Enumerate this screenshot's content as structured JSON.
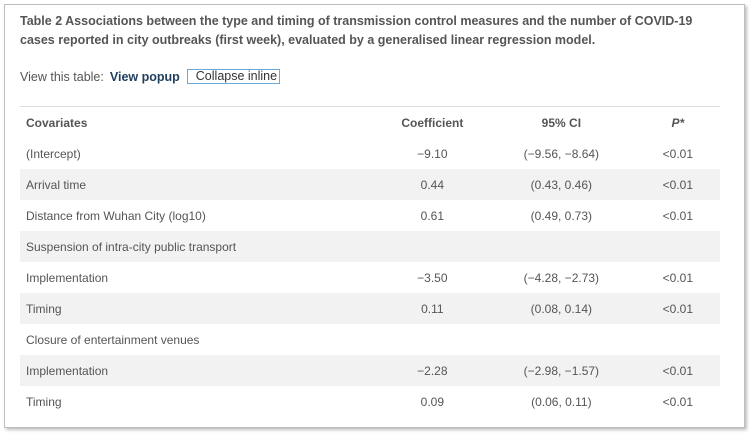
{
  "caption": "Table 2 Associations between the type and timing of transmission control measures and the number of COVID-19 cases reported in city outbreaks (first week), evaluated by a generalised linear regression model.",
  "view": {
    "label": "View this table:",
    "popup": "View popup",
    "collapse": "Collapse inline"
  },
  "table": {
    "headers": {
      "covariates": "Covariates",
      "coefficient": "Coefficient",
      "ci": "95% CI",
      "p": "P*"
    },
    "rows": [
      {
        "covariate": "(Intercept)",
        "coefficient": "−9.10",
        "ci": "(−9.56, −8.64)",
        "p": "<0.01"
      },
      {
        "covariate": "Arrival time",
        "coefficient": "0.44",
        "ci": "(0.43, 0.46)",
        "p": "<0.01"
      },
      {
        "covariate": "Distance from Wuhan City (log10)",
        "coefficient": "0.61",
        "ci": "(0.49, 0.73)",
        "p": "<0.01"
      },
      {
        "covariate": "Suspension of intra-city public transport",
        "coefficient": "",
        "ci": "",
        "p": ""
      },
      {
        "covariate": "Implementation",
        "coefficient": "−3.50",
        "ci": "(−4.28, −2.73)",
        "p": "<0.01"
      },
      {
        "covariate": "Timing",
        "coefficient": "0.11",
        "ci": "(0.08, 0.14)",
        "p": "<0.01"
      },
      {
        "covariate": "Closure of entertainment venues",
        "coefficient": "",
        "ci": "",
        "p": ""
      },
      {
        "covariate": "Implementation",
        "coefficient": "−2.28",
        "ci": "(−2.98, −1.57)",
        "p": "<0.01"
      },
      {
        "covariate": "Timing",
        "coefficient": "0.09",
        "ci": "(0.06, 0.11)",
        "p": "<0.01"
      }
    ]
  }
}
